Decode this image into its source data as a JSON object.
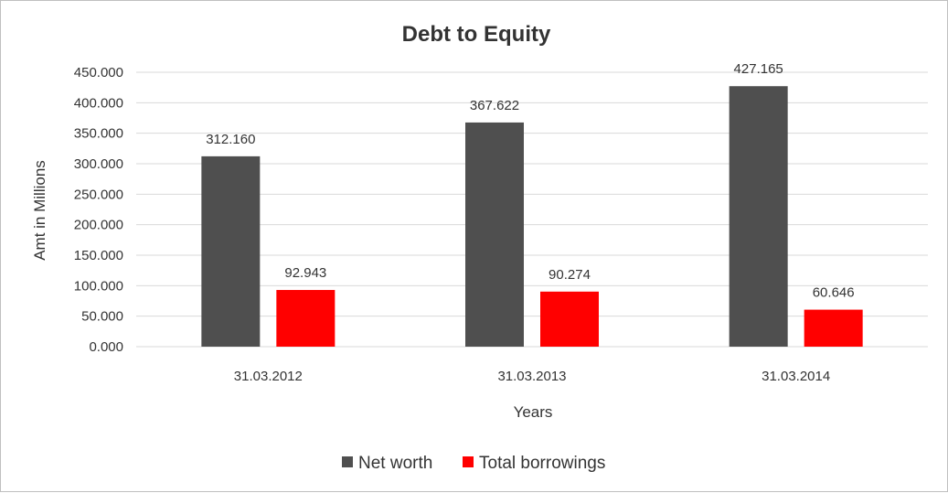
{
  "chart_data": {
    "type": "bar",
    "title": "Debt to Equity",
    "xlabel": "Years",
    "ylabel": "Amt in Millions",
    "categories": [
      "31.03.2012",
      "31.03.2013",
      "31.03.2014"
    ],
    "series": [
      {
        "name": "Net worth",
        "color": "#4f4f4f",
        "values": [
          312.16,
          367.622,
          427.165
        ],
        "labels": [
          "312.160",
          "367.622",
          "427.165"
        ]
      },
      {
        "name": "Total borrowings",
        "color": "#ff0000",
        "values": [
          92.943,
          90.274,
          60.646
        ],
        "labels": [
          "92.943",
          "90.274",
          "60.646"
        ]
      }
    ],
    "ylim": [
      0,
      450
    ],
    "yticks": [
      0,
      50,
      100,
      150,
      200,
      250,
      300,
      350,
      400,
      450
    ],
    "ytick_labels": [
      "0.000",
      "50.000",
      "100.000",
      "150.000",
      "200.000",
      "250.000",
      "300.000",
      "350.000",
      "400.000",
      "450.000"
    ],
    "grid": true,
    "legend_position": "bottom"
  }
}
